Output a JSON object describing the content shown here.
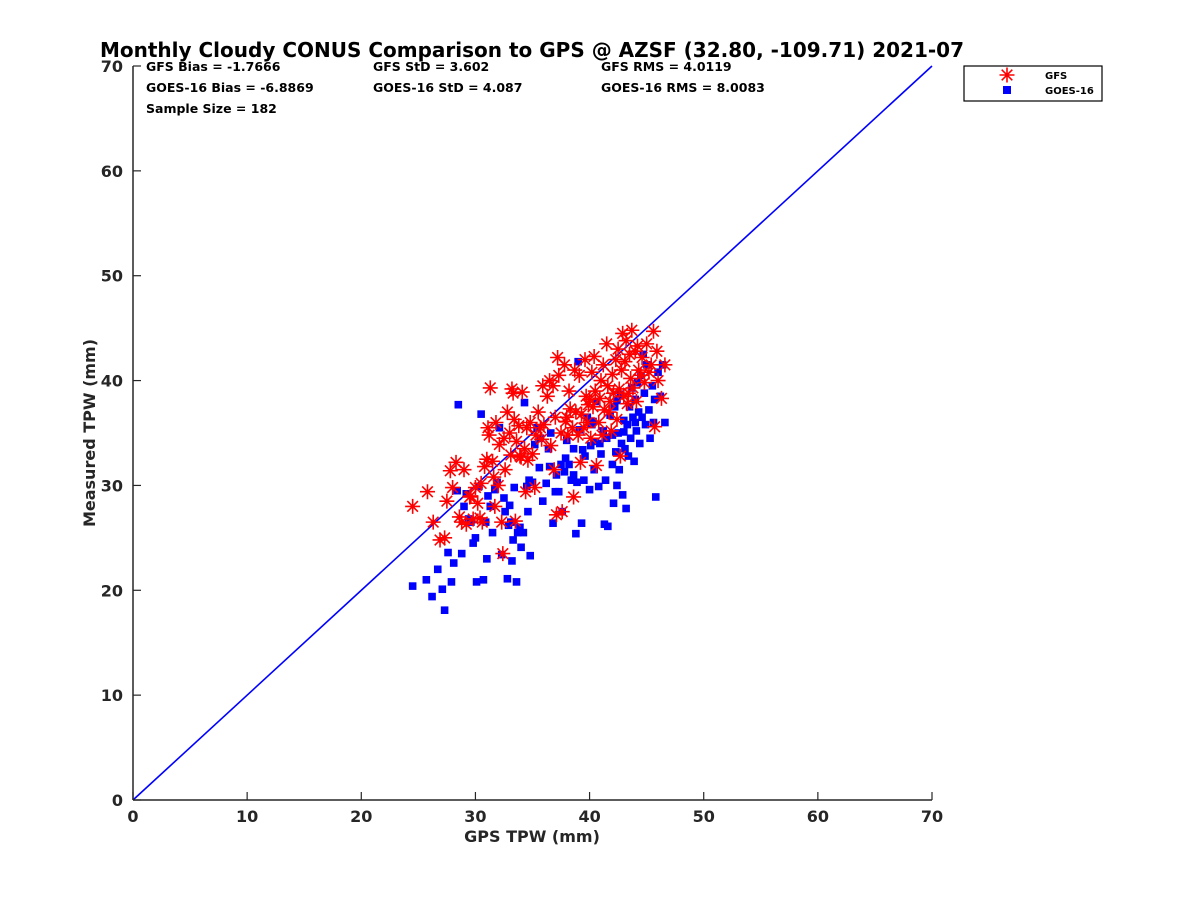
{
  "chart_data": {
    "type": "scatter",
    "title": "Monthly Cloudy CONUS Comparison to GPS @ AZSF (32.80, -109.71) 2021-07",
    "xlabel": "GPS TPW (mm)",
    "ylabel": "Measured TPW (mm)",
    "xlim": [
      0,
      70
    ],
    "ylim": [
      0,
      70
    ],
    "xticks": [
      "0",
      "10",
      "20",
      "30",
      "40",
      "50",
      "60",
      "70"
    ],
    "yticks": [
      "0",
      "10",
      "20",
      "30",
      "40",
      "50",
      "60",
      "70"
    ],
    "grid": false,
    "legend_position": "top-right",
    "stats": [
      [
        "GFS Bias = -1.7666",
        "GFS StD = 3.602",
        "GFS RMS = 4.0119"
      ],
      [
        "GOES-16 Bias = -6.8869",
        "GOES-16 StD = 4.087",
        "GOES-16 RMS = 8.0083"
      ],
      [
        "Sample Size = 182",
        "",
        ""
      ]
    ],
    "reference_line": {
      "x": [
        0,
        70
      ],
      "y": [
        0,
        70
      ],
      "color": "#0000ff"
    },
    "series": [
      {
        "name": "GFS",
        "marker": "asterisk",
        "color": "#ff0000",
        "points": [
          [
            24.5,
            28.0
          ],
          [
            25.8,
            29.4
          ],
          [
            26.3,
            26.5
          ],
          [
            26.9,
            24.8
          ],
          [
            27.3,
            25.0
          ],
          [
            27.5,
            28.5
          ],
          [
            27.8,
            31.4
          ],
          [
            28.0,
            29.8
          ],
          [
            28.3,
            32.2
          ],
          [
            28.6,
            27.0
          ],
          [
            28.8,
            26.5
          ],
          [
            29.0,
            31.5
          ],
          [
            29.2,
            26.3
          ],
          [
            29.5,
            28.9
          ],
          [
            29.8,
            26.8
          ],
          [
            30.0,
            29.8
          ],
          [
            30.2,
            28.3
          ],
          [
            30.4,
            26.9
          ],
          [
            30.5,
            30.2
          ],
          [
            30.6,
            26.5
          ],
          [
            30.8,
            31.8
          ],
          [
            31.0,
            32.5
          ],
          [
            31.1,
            35.5
          ],
          [
            31.2,
            34.8
          ],
          [
            31.3,
            39.3
          ],
          [
            31.5,
            32.3
          ],
          [
            31.7,
            28.0
          ],
          [
            31.8,
            36.0
          ],
          [
            32.0,
            30.0
          ],
          [
            32.1,
            33.9
          ],
          [
            32.3,
            26.5
          ],
          [
            32.4,
            23.5
          ],
          [
            32.5,
            34.5
          ],
          [
            32.6,
            31.5
          ],
          [
            32.8,
            37.0
          ],
          [
            33.0,
            35.0
          ],
          [
            33.1,
            32.9
          ],
          [
            33.2,
            39.2
          ],
          [
            33.3,
            38.8
          ],
          [
            33.4,
            36.3
          ],
          [
            33.5,
            26.6
          ],
          [
            33.6,
            34.2
          ],
          [
            33.8,
            35.7
          ],
          [
            34.0,
            32.7
          ],
          [
            34.1,
            38.9
          ],
          [
            34.3,
            33.5
          ],
          [
            34.4,
            29.4
          ],
          [
            34.5,
            35.5
          ],
          [
            34.6,
            32.4
          ],
          [
            34.8,
            36.0
          ],
          [
            35.0,
            33.0
          ],
          [
            35.2,
            29.8
          ],
          [
            35.3,
            34.8
          ],
          [
            35.5,
            37.0
          ],
          [
            35.7,
            35.5
          ],
          [
            35.9,
            39.5
          ],
          [
            36.0,
            35.8
          ],
          [
            36.3,
            38.5
          ],
          [
            36.5,
            40.0
          ],
          [
            36.6,
            33.8
          ],
          [
            36.8,
            39.5
          ],
          [
            37.0,
            36.5
          ],
          [
            37.1,
            27.2
          ],
          [
            37.2,
            42.2
          ],
          [
            37.3,
            40.5
          ],
          [
            37.5,
            35.0
          ],
          [
            37.6,
            27.5
          ],
          [
            37.8,
            41.5
          ],
          [
            38.0,
            36.5
          ],
          [
            38.1,
            34.8
          ],
          [
            38.2,
            39.0
          ],
          [
            38.3,
            37.3
          ],
          [
            38.5,
            35.5
          ],
          [
            38.6,
            28.9
          ],
          [
            38.7,
            41.0
          ],
          [
            38.8,
            37.0
          ],
          [
            39.0,
            34.8
          ],
          [
            39.1,
            40.5
          ],
          [
            39.2,
            32.2
          ],
          [
            39.3,
            36.8
          ],
          [
            39.5,
            35.5
          ],
          [
            39.6,
            42.0
          ],
          [
            39.7,
            38.5
          ],
          [
            39.8,
            36.0
          ],
          [
            40.0,
            38.2
          ],
          [
            40.1,
            34.5
          ],
          [
            40.2,
            40.8
          ],
          [
            40.3,
            37.5
          ],
          [
            40.4,
            42.3
          ],
          [
            40.5,
            39.0
          ],
          [
            40.6,
            31.9
          ],
          [
            40.8,
            36.0
          ],
          [
            40.9,
            38.3
          ],
          [
            41.0,
            40.0
          ],
          [
            41.1,
            34.8
          ],
          [
            41.2,
            41.5
          ],
          [
            41.3,
            37.2
          ],
          [
            41.5,
            43.5
          ],
          [
            41.6,
            39.5
          ],
          [
            41.8,
            38.0
          ],
          [
            41.9,
            35.2
          ],
          [
            42.0,
            40.6
          ],
          [
            42.1,
            38.8
          ],
          [
            42.3,
            42.0
          ],
          [
            42.4,
            36.3
          ],
          [
            42.5,
            43.0
          ],
          [
            42.6,
            39.2
          ],
          [
            42.7,
            32.8
          ],
          [
            42.8,
            41.0
          ],
          [
            42.9,
            44.5
          ],
          [
            43.0,
            38.5
          ],
          [
            43.1,
            41.8
          ],
          [
            43.2,
            43.8
          ],
          [
            43.3,
            37.8
          ],
          [
            43.5,
            42.5
          ],
          [
            43.6,
            40.2
          ],
          [
            43.7,
            44.8
          ],
          [
            43.8,
            39.3
          ],
          [
            44.0,
            42.8
          ],
          [
            44.1,
            38.0
          ],
          [
            44.2,
            43.3
          ],
          [
            44.3,
            41.0
          ],
          [
            44.5,
            40.5
          ],
          [
            44.6,
            42.2
          ],
          [
            44.8,
            39.8
          ],
          [
            45.0,
            43.5
          ],
          [
            45.2,
            40.8
          ],
          [
            45.4,
            41.5
          ],
          [
            45.6,
            44.7
          ],
          [
            45.7,
            35.6
          ],
          [
            45.9,
            42.8
          ],
          [
            46.0,
            40.0
          ],
          [
            46.3,
            38.3
          ],
          [
            46.6,
            41.5
          ],
          [
            33.9,
            32.8
          ],
          [
            35.8,
            34.4
          ],
          [
            37.9,
            36.1
          ],
          [
            39.9,
            37.7
          ],
          [
            41.7,
            37.0
          ],
          [
            43.4,
            38.8
          ],
          [
            29.6,
            29.0
          ],
          [
            31.6,
            30.8
          ],
          [
            36.9,
            31.5
          ]
        ]
      },
      {
        "name": "GOES-16",
        "marker": "square",
        "color": "#0000ff",
        "points": [
          [
            24.5,
            20.4
          ],
          [
            25.7,
            21.0
          ],
          [
            26.2,
            19.4
          ],
          [
            26.7,
            22.0
          ],
          [
            27.1,
            20.1
          ],
          [
            27.3,
            18.1
          ],
          [
            27.6,
            23.6
          ],
          [
            27.9,
            20.8
          ],
          [
            28.1,
            22.6
          ],
          [
            28.4,
            29.5
          ],
          [
            28.5,
            37.7
          ],
          [
            28.8,
            23.5
          ],
          [
            29.0,
            28.0
          ],
          [
            29.2,
            29.2
          ],
          [
            29.6,
            26.5
          ],
          [
            29.8,
            24.5
          ],
          [
            30.0,
            25.0
          ],
          [
            30.1,
            20.8
          ],
          [
            30.3,
            29.9
          ],
          [
            30.5,
            36.8
          ],
          [
            30.7,
            21.0
          ],
          [
            30.9,
            26.5
          ],
          [
            31.1,
            29.0
          ],
          [
            31.3,
            28.0
          ],
          [
            31.5,
            25.5
          ],
          [
            31.7,
            29.6
          ],
          [
            31.9,
            30.3
          ],
          [
            32.1,
            35.5
          ],
          [
            32.3,
            23.4
          ],
          [
            32.5,
            28.8
          ],
          [
            32.6,
            27.5
          ],
          [
            32.8,
            21.1
          ],
          [
            32.9,
            26.2
          ],
          [
            33.1,
            26.5
          ],
          [
            33.2,
            22.8
          ],
          [
            33.3,
            24.8
          ],
          [
            33.4,
            29.8
          ],
          [
            33.6,
            20.8
          ],
          [
            33.7,
            25.5
          ],
          [
            33.9,
            26.0
          ],
          [
            34.0,
            24.1
          ],
          [
            34.2,
            25.5
          ],
          [
            34.3,
            37.9
          ],
          [
            34.5,
            29.9
          ],
          [
            34.6,
            27.5
          ],
          [
            34.8,
            23.3
          ],
          [
            35.0,
            30.3
          ],
          [
            35.2,
            33.9
          ],
          [
            35.4,
            35.5
          ],
          [
            35.7,
            34.5
          ],
          [
            35.9,
            28.5
          ],
          [
            36.2,
            30.2
          ],
          [
            36.4,
            33.5
          ],
          [
            36.6,
            35.0
          ],
          [
            36.8,
            26.4
          ],
          [
            37.0,
            29.4
          ],
          [
            37.1,
            31.0
          ],
          [
            37.3,
            29.4
          ],
          [
            37.5,
            32.0
          ],
          [
            37.6,
            27.5
          ],
          [
            37.8,
            31.3
          ],
          [
            38.0,
            34.3
          ],
          [
            38.2,
            32.0
          ],
          [
            38.4,
            30.5
          ],
          [
            38.6,
            33.5
          ],
          [
            38.8,
            25.4
          ],
          [
            38.9,
            30.3
          ],
          [
            39.0,
            41.8
          ],
          [
            39.1,
            35.3
          ],
          [
            39.3,
            26.4
          ],
          [
            39.5,
            30.5
          ],
          [
            39.6,
            32.8
          ],
          [
            39.8,
            36.5
          ],
          [
            40.0,
            29.6
          ],
          [
            40.1,
            33.8
          ],
          [
            40.2,
            35.8
          ],
          [
            40.4,
            31.5
          ],
          [
            40.5,
            34.2
          ],
          [
            40.6,
            38.0
          ],
          [
            40.8,
            29.9
          ],
          [
            41.0,
            33.0
          ],
          [
            41.2,
            35.2
          ],
          [
            41.3,
            26.3
          ],
          [
            41.4,
            30.5
          ],
          [
            41.5,
            34.5
          ],
          [
            41.6,
            26.1
          ],
          [
            41.8,
            36.7
          ],
          [
            42.0,
            32.0
          ],
          [
            42.1,
            28.3
          ],
          [
            42.2,
            37.5
          ],
          [
            42.3,
            33.2
          ],
          [
            42.4,
            30.0
          ],
          [
            42.5,
            35.0
          ],
          [
            42.6,
            31.5
          ],
          [
            42.7,
            38.7
          ],
          [
            42.8,
            34.0
          ],
          [
            42.9,
            29.1
          ],
          [
            43.0,
            36.2
          ],
          [
            43.1,
            33.5
          ],
          [
            43.2,
            27.8
          ],
          [
            43.3,
            35.8
          ],
          [
            43.4,
            32.8
          ],
          [
            43.5,
            37.5
          ],
          [
            43.6,
            34.5
          ],
          [
            43.7,
            39.3
          ],
          [
            43.8,
            36.5
          ],
          [
            43.9,
            32.3
          ],
          [
            44.0,
            38.2
          ],
          [
            44.1,
            35.2
          ],
          [
            44.2,
            39.8
          ],
          [
            44.3,
            37.0
          ],
          [
            44.4,
            34.0
          ],
          [
            44.5,
            40.5
          ],
          [
            44.6,
            36.5
          ],
          [
            44.7,
            42.5
          ],
          [
            44.8,
            38.8
          ],
          [
            44.9,
            35.8
          ],
          [
            45.0,
            41.5
          ],
          [
            45.2,
            37.2
          ],
          [
            45.3,
            34.5
          ],
          [
            45.5,
            39.5
          ],
          [
            45.6,
            36.0
          ],
          [
            45.7,
            38.2
          ],
          [
            45.8,
            28.9
          ],
          [
            46.0,
            40.8
          ],
          [
            46.2,
            38.5
          ],
          [
            46.4,
            41.5
          ],
          [
            46.6,
            36.0
          ],
          [
            34.7,
            30.5
          ],
          [
            36.5,
            31.8
          ],
          [
            37.9,
            32.6
          ],
          [
            39.4,
            33.4
          ],
          [
            40.9,
            34.0
          ],
          [
            42.0,
            34.8
          ],
          [
            43.0,
            35.1
          ],
          [
            44.0,
            36.0
          ],
          [
            33.0,
            28.1
          ],
          [
            38.6,
            31.0
          ],
          [
            40.3,
            36.1
          ],
          [
            42.4,
            38.1
          ],
          [
            29.4,
            26.8
          ],
          [
            31.0,
            23.0
          ],
          [
            35.6,
            31.7
          ]
        ]
      }
    ]
  }
}
